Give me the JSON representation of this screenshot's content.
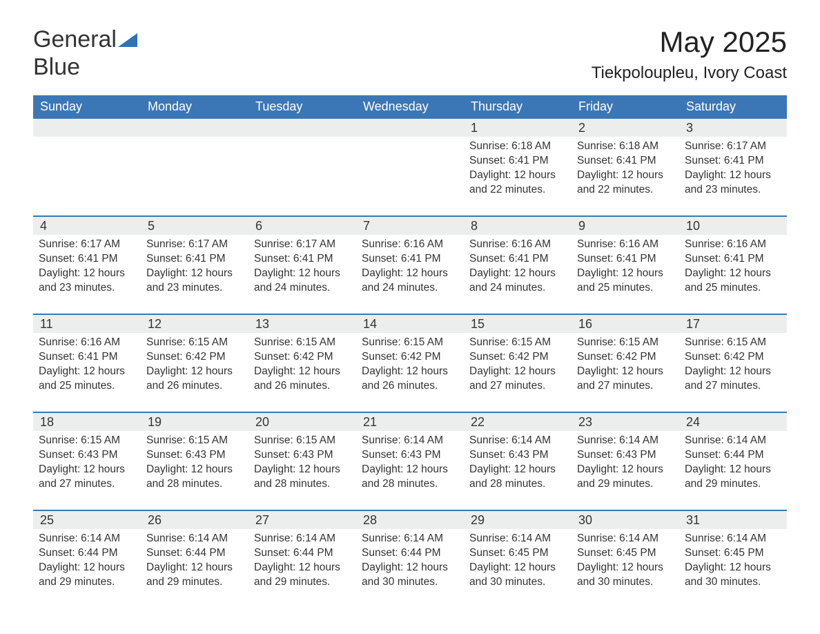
{
  "brand": {
    "word1": "General",
    "word2": "Blue",
    "accent_color": "#2f74b5"
  },
  "header": {
    "title": "May 2025",
    "location": "Tiekpoloupleu, Ivory Coast"
  },
  "colors": {
    "header_bg": "#3b77b6",
    "header_fg": "#ffffff",
    "daynum_bg": "#eceeee",
    "text": "#333333",
    "rule": "#3b77b6",
    "page_bg": "#ffffff"
  },
  "calendar": {
    "weekdays": [
      "Sunday",
      "Monday",
      "Tuesday",
      "Wednesday",
      "Thursday",
      "Friday",
      "Saturday"
    ],
    "weeks": [
      [
        {
          "blank": true
        },
        {
          "blank": true
        },
        {
          "blank": true
        },
        {
          "blank": true
        },
        {
          "day": "1",
          "sunrise": "Sunrise: 6:18 AM",
          "sunset": "Sunset: 6:41 PM",
          "dl1": "Daylight: 12 hours",
          "dl2": "and 22 minutes."
        },
        {
          "day": "2",
          "sunrise": "Sunrise: 6:18 AM",
          "sunset": "Sunset: 6:41 PM",
          "dl1": "Daylight: 12 hours",
          "dl2": "and 22 minutes."
        },
        {
          "day": "3",
          "sunrise": "Sunrise: 6:17 AM",
          "sunset": "Sunset: 6:41 PM",
          "dl1": "Daylight: 12 hours",
          "dl2": "and 23 minutes."
        }
      ],
      [
        {
          "day": "4",
          "sunrise": "Sunrise: 6:17 AM",
          "sunset": "Sunset: 6:41 PM",
          "dl1": "Daylight: 12 hours",
          "dl2": "and 23 minutes."
        },
        {
          "day": "5",
          "sunrise": "Sunrise: 6:17 AM",
          "sunset": "Sunset: 6:41 PM",
          "dl1": "Daylight: 12 hours",
          "dl2": "and 23 minutes."
        },
        {
          "day": "6",
          "sunrise": "Sunrise: 6:17 AM",
          "sunset": "Sunset: 6:41 PM",
          "dl1": "Daylight: 12 hours",
          "dl2": "and 24 minutes."
        },
        {
          "day": "7",
          "sunrise": "Sunrise: 6:16 AM",
          "sunset": "Sunset: 6:41 PM",
          "dl1": "Daylight: 12 hours",
          "dl2": "and 24 minutes."
        },
        {
          "day": "8",
          "sunrise": "Sunrise: 6:16 AM",
          "sunset": "Sunset: 6:41 PM",
          "dl1": "Daylight: 12 hours",
          "dl2": "and 24 minutes."
        },
        {
          "day": "9",
          "sunrise": "Sunrise: 6:16 AM",
          "sunset": "Sunset: 6:41 PM",
          "dl1": "Daylight: 12 hours",
          "dl2": "and 25 minutes."
        },
        {
          "day": "10",
          "sunrise": "Sunrise: 6:16 AM",
          "sunset": "Sunset: 6:41 PM",
          "dl1": "Daylight: 12 hours",
          "dl2": "and 25 minutes."
        }
      ],
      [
        {
          "day": "11",
          "sunrise": "Sunrise: 6:16 AM",
          "sunset": "Sunset: 6:41 PM",
          "dl1": "Daylight: 12 hours",
          "dl2": "and 25 minutes."
        },
        {
          "day": "12",
          "sunrise": "Sunrise: 6:15 AM",
          "sunset": "Sunset: 6:42 PM",
          "dl1": "Daylight: 12 hours",
          "dl2": "and 26 minutes."
        },
        {
          "day": "13",
          "sunrise": "Sunrise: 6:15 AM",
          "sunset": "Sunset: 6:42 PM",
          "dl1": "Daylight: 12 hours",
          "dl2": "and 26 minutes."
        },
        {
          "day": "14",
          "sunrise": "Sunrise: 6:15 AM",
          "sunset": "Sunset: 6:42 PM",
          "dl1": "Daylight: 12 hours",
          "dl2": "and 26 minutes."
        },
        {
          "day": "15",
          "sunrise": "Sunrise: 6:15 AM",
          "sunset": "Sunset: 6:42 PM",
          "dl1": "Daylight: 12 hours",
          "dl2": "and 27 minutes."
        },
        {
          "day": "16",
          "sunrise": "Sunrise: 6:15 AM",
          "sunset": "Sunset: 6:42 PM",
          "dl1": "Daylight: 12 hours",
          "dl2": "and 27 minutes."
        },
        {
          "day": "17",
          "sunrise": "Sunrise: 6:15 AM",
          "sunset": "Sunset: 6:42 PM",
          "dl1": "Daylight: 12 hours",
          "dl2": "and 27 minutes."
        }
      ],
      [
        {
          "day": "18",
          "sunrise": "Sunrise: 6:15 AM",
          "sunset": "Sunset: 6:43 PM",
          "dl1": "Daylight: 12 hours",
          "dl2": "and 27 minutes."
        },
        {
          "day": "19",
          "sunrise": "Sunrise: 6:15 AM",
          "sunset": "Sunset: 6:43 PM",
          "dl1": "Daylight: 12 hours",
          "dl2": "and 28 minutes."
        },
        {
          "day": "20",
          "sunrise": "Sunrise: 6:15 AM",
          "sunset": "Sunset: 6:43 PM",
          "dl1": "Daylight: 12 hours",
          "dl2": "and 28 minutes."
        },
        {
          "day": "21",
          "sunrise": "Sunrise: 6:14 AM",
          "sunset": "Sunset: 6:43 PM",
          "dl1": "Daylight: 12 hours",
          "dl2": "and 28 minutes."
        },
        {
          "day": "22",
          "sunrise": "Sunrise: 6:14 AM",
          "sunset": "Sunset: 6:43 PM",
          "dl1": "Daylight: 12 hours",
          "dl2": "and 28 minutes."
        },
        {
          "day": "23",
          "sunrise": "Sunrise: 6:14 AM",
          "sunset": "Sunset: 6:43 PM",
          "dl1": "Daylight: 12 hours",
          "dl2": "and 29 minutes."
        },
        {
          "day": "24",
          "sunrise": "Sunrise: 6:14 AM",
          "sunset": "Sunset: 6:44 PM",
          "dl1": "Daylight: 12 hours",
          "dl2": "and 29 minutes."
        }
      ],
      [
        {
          "day": "25",
          "sunrise": "Sunrise: 6:14 AM",
          "sunset": "Sunset: 6:44 PM",
          "dl1": "Daylight: 12 hours",
          "dl2": "and 29 minutes."
        },
        {
          "day": "26",
          "sunrise": "Sunrise: 6:14 AM",
          "sunset": "Sunset: 6:44 PM",
          "dl1": "Daylight: 12 hours",
          "dl2": "and 29 minutes."
        },
        {
          "day": "27",
          "sunrise": "Sunrise: 6:14 AM",
          "sunset": "Sunset: 6:44 PM",
          "dl1": "Daylight: 12 hours",
          "dl2": "and 29 minutes."
        },
        {
          "day": "28",
          "sunrise": "Sunrise: 6:14 AM",
          "sunset": "Sunset: 6:44 PM",
          "dl1": "Daylight: 12 hours",
          "dl2": "and 30 minutes."
        },
        {
          "day": "29",
          "sunrise": "Sunrise: 6:14 AM",
          "sunset": "Sunset: 6:45 PM",
          "dl1": "Daylight: 12 hours",
          "dl2": "and 30 minutes."
        },
        {
          "day": "30",
          "sunrise": "Sunrise: 6:14 AM",
          "sunset": "Sunset: 6:45 PM",
          "dl1": "Daylight: 12 hours",
          "dl2": "and 30 minutes."
        },
        {
          "day": "31",
          "sunrise": "Sunrise: 6:14 AM",
          "sunset": "Sunset: 6:45 PM",
          "dl1": "Daylight: 12 hours",
          "dl2": "and 30 minutes."
        }
      ]
    ]
  }
}
